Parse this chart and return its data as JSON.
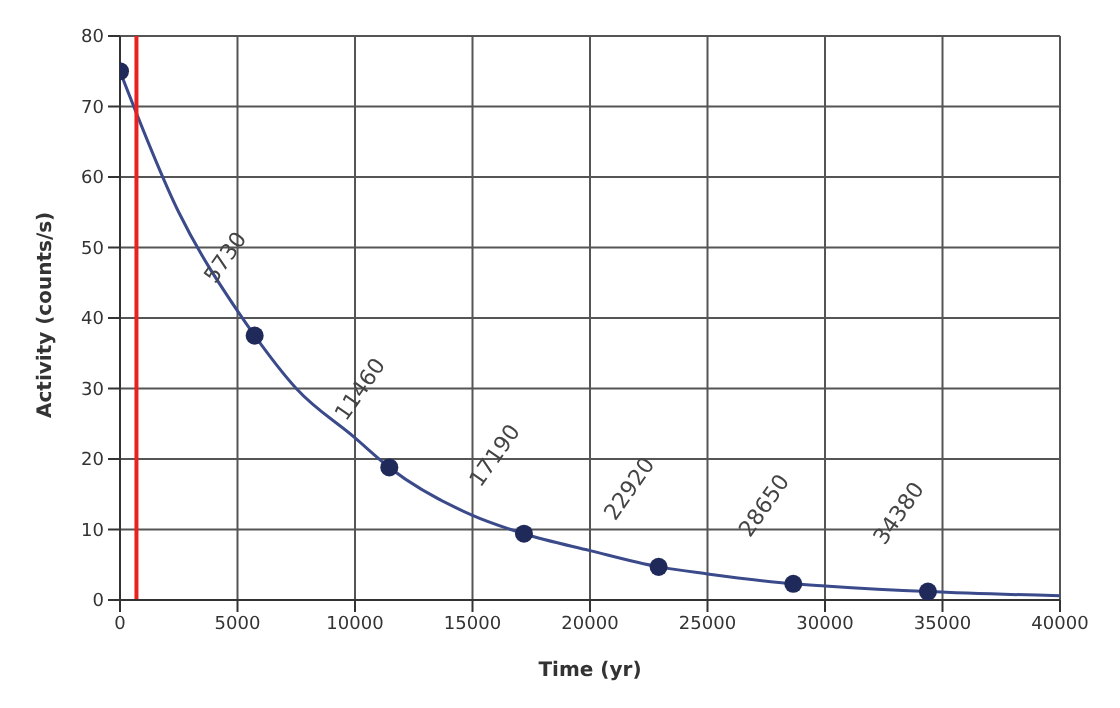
{
  "chart_data": {
    "type": "scatter",
    "xlabel": "Time (yr)",
    "ylabel": "Activity (counts/s)",
    "series": [
      {
        "color": "#1f2a5a",
        "marker": "circle",
        "x": [
          0,
          5730,
          11460,
          17190,
          22920,
          28650,
          34380
        ],
        "values": [
          75,
          37.5,
          18.8,
          9.4,
          4.7,
          2.3,
          1.2
        ]
      },
      {
        "type": "line",
        "color": "#3a4a8a",
        "marker": "none",
        "line_style": "solid",
        "x": [
          0,
          2500,
          5000,
          5730,
          7500,
          10000,
          11460,
          15000,
          17190,
          20000,
          22920,
          25000,
          28650,
          30000,
          34380,
          40000
        ],
        "values": [
          75,
          55,
          41,
          37.5,
          30,
          23,
          18.8,
          12,
          9.4,
          7,
          4.7,
          3.7,
          2.3,
          2,
          1.2,
          0.6
        ]
      }
    ],
    "xlim": [
      0,
      40000
    ],
    "xticks": [
      0,
      5000,
      10000,
      15000,
      20000,
      25000,
      30000,
      35000,
      40000
    ],
    "ylim": [
      0,
      80
    ],
    "yticks": [
      0,
      10,
      20,
      30,
      40,
      50,
      60,
      70,
      80
    ],
    "grid": true,
    "ref_lines": [
      {
        "axis": "x",
        "value": 700,
        "color": "#e8231f"
      }
    ],
    "annotations": [
      "5730",
      "11460",
      "17190",
      "22920",
      "28650",
      "34380"
    ]
  }
}
